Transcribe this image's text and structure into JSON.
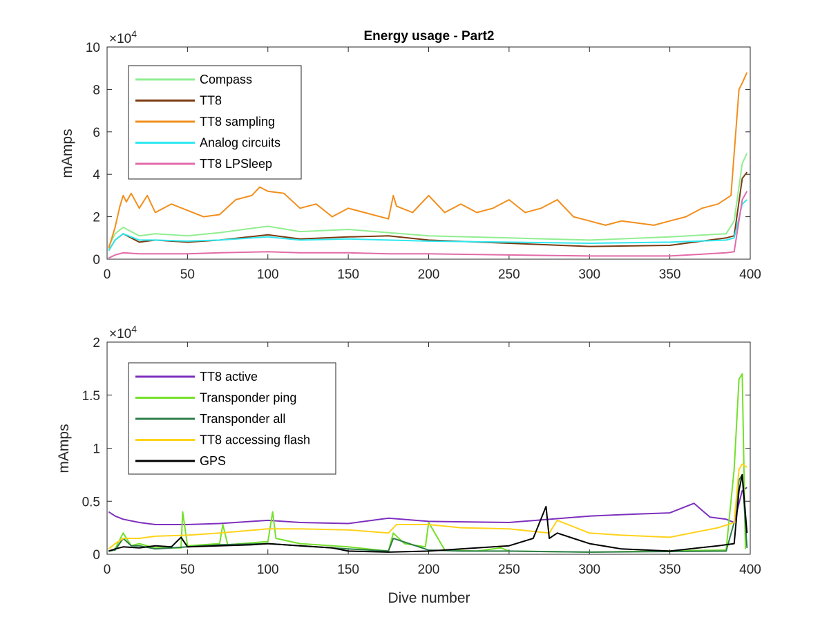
{
  "chart_data": [
    {
      "type": "line",
      "title": "Energy usage - Part2",
      "xlabel": "",
      "ylabel": "mAmps",
      "exponent_label": "×10",
      "exponent_power": "4",
      "xlim": [
        0,
        400
      ],
      "ylim": [
        0,
        100000
      ],
      "xticks": [
        0,
        50,
        100,
        150,
        200,
        250,
        300,
        350,
        400
      ],
      "xtick_labels": [
        "0",
        "50",
        "100",
        "150",
        "200",
        "250",
        "300",
        "350",
        "400"
      ],
      "yticks": [
        0,
        20000,
        40000,
        60000,
        80000,
        100000
      ],
      "ytick_labels": [
        "0",
        "2",
        "4",
        "6",
        "8",
        "10"
      ],
      "grid": false,
      "legend_position": "top-left",
      "series": [
        {
          "name": "Compass",
          "color": "#90ee90",
          "x": [
            1,
            5,
            10,
            20,
            30,
            50,
            70,
            100,
            120,
            150,
            175,
            200,
            250,
            300,
            350,
            385,
            390,
            395,
            398
          ],
          "y": [
            6000,
            12000,
            15000,
            11000,
            12000,
            11000,
            12500,
            15500,
            13000,
            14000,
            12500,
            11000,
            10000,
            9000,
            10500,
            12000,
            18000,
            45000,
            50000
          ]
        },
        {
          "name": "TT8",
          "color": "#7b3a10",
          "x": [
            1,
            5,
            10,
            20,
            30,
            50,
            70,
            100,
            120,
            150,
            175,
            200,
            250,
            300,
            350,
            385,
            390,
            395,
            398
          ],
          "y": [
            4000,
            9000,
            12000,
            8000,
            9000,
            8000,
            9000,
            11500,
            9500,
            10500,
            11000,
            9000,
            7500,
            6000,
            6500,
            10000,
            11000,
            38000,
            41000
          ]
        },
        {
          "name": "TT8 sampling",
          "color": "#f28e1c",
          "x": [
            1,
            5,
            8,
            10,
            12,
            15,
            20,
            25,
            30,
            40,
            50,
            60,
            70,
            80,
            90,
            95,
            100,
            110,
            120,
            130,
            140,
            145,
            150,
            160,
            175,
            178,
            180,
            190,
            200,
            210,
            220,
            230,
            240,
            250,
            260,
            270,
            280,
            290,
            300,
            310,
            320,
            330,
            340,
            350,
            360,
            370,
            380,
            388,
            391,
            393,
            395,
            398
          ],
          "y": [
            5000,
            15000,
            25000,
            30000,
            27000,
            31000,
            24000,
            30000,
            22000,
            26000,
            23000,
            20000,
            21000,
            28000,
            30000,
            34000,
            32000,
            31000,
            24000,
            26000,
            20000,
            22000,
            24000,
            22000,
            19000,
            30000,
            25000,
            22000,
            30000,
            22000,
            26000,
            22000,
            24000,
            28000,
            22000,
            24000,
            28000,
            20000,
            18000,
            16000,
            18000,
            17000,
            16000,
            18000,
            20000,
            24000,
            26000,
            30000,
            60000,
            80000,
            83000,
            88000
          ]
        },
        {
          "name": "Analog circuits",
          "color": "#2ee8f0",
          "x": [
            1,
            5,
            10,
            20,
            30,
            50,
            70,
            100,
            120,
            150,
            175,
            200,
            250,
            300,
            350,
            385,
            390,
            395,
            398
          ],
          "y": [
            4000,
            9000,
            12000,
            9000,
            9000,
            8500,
            9000,
            10500,
            9000,
            9500,
            9000,
            8500,
            8000,
            7500,
            8000,
            9000,
            10000,
            26000,
            28000
          ]
        },
        {
          "name": "TT8 LPSleep",
          "color": "#e26aa8",
          "x": [
            1,
            5,
            10,
            20,
            30,
            50,
            70,
            100,
            120,
            150,
            175,
            200,
            250,
            300,
            350,
            385,
            390,
            395,
            398
          ],
          "y": [
            500,
            2000,
            3000,
            2500,
            2500,
            2500,
            3000,
            3500,
            3000,
            3000,
            2500,
            2500,
            2000,
            1500,
            1500,
            3000,
            3500,
            28000,
            32000
          ]
        }
      ]
    },
    {
      "type": "line",
      "title": "",
      "xlabel": "Dive number",
      "ylabel": "mAmps",
      "exponent_label": "×10",
      "exponent_power": "4",
      "xlim": [
        0,
        400
      ],
      "ylim": [
        0,
        20000
      ],
      "xticks": [
        0,
        50,
        100,
        150,
        200,
        250,
        300,
        350,
        400
      ],
      "xtick_labels": [
        "0",
        "50",
        "100",
        "150",
        "200",
        "250",
        "300",
        "350",
        "400"
      ],
      "yticks": [
        0,
        5000,
        10000,
        15000,
        20000
      ],
      "ytick_labels": [
        "0",
        "0.5",
        "1",
        "1.5",
        "2"
      ],
      "grid": false,
      "legend_position": "top-left",
      "series": [
        {
          "name": "TT8 active",
          "color": "#7e2fbe",
          "x": [
            1,
            5,
            10,
            20,
            30,
            50,
            70,
            100,
            120,
            150,
            175,
            200,
            250,
            300,
            330,
            350,
            365,
            375,
            385,
            390,
            395,
            398
          ],
          "y": [
            4000,
            3600,
            3300,
            3000,
            2800,
            2800,
            2900,
            3200,
            3000,
            2900,
            3400,
            3100,
            3000,
            3600,
            3800,
            3900,
            4800,
            3500,
            3300,
            3000,
            6000,
            6300
          ]
        },
        {
          "name": "Transponder ping",
          "color": "#74e02a",
          "x": [
            1,
            5,
            10,
            15,
            20,
            30,
            46,
            47,
            50,
            70,
            72,
            75,
            100,
            103,
            105,
            120,
            150,
            175,
            178,
            185,
            198,
            200,
            210,
            230,
            245,
            250,
            300,
            385,
            390,
            393,
            395,
            397
          ],
          "y": [
            300,
            500,
            2000,
            800,
            1000,
            600,
            600,
            4000,
            800,
            1000,
            2800,
            900,
            1200,
            4000,
            1500,
            1000,
            700,
            300,
            2000,
            1000,
            700,
            3000,
            400,
            300,
            600,
            300,
            200,
            400,
            8000,
            16500,
            17000,
            500
          ]
        },
        {
          "name": "Transponder all",
          "color": "#2e7d4a",
          "x": [
            1,
            5,
            10,
            15,
            20,
            30,
            50,
            70,
            100,
            120,
            150,
            175,
            178,
            200,
            220,
            250,
            300,
            385,
            390,
            393,
            395,
            398
          ],
          "y": [
            300,
            400,
            1500,
            800,
            800,
            500,
            700,
            900,
            1000,
            800,
            500,
            300,
            1500,
            400,
            300,
            300,
            200,
            300,
            3000,
            7000,
            7500,
            600
          ]
        },
        {
          "name": "TT8 accessing flash",
          "color": "#ffd21a",
          "x": [
            1,
            5,
            10,
            20,
            30,
            50,
            70,
            100,
            120,
            150,
            175,
            180,
            200,
            220,
            250,
            275,
            280,
            300,
            320,
            350,
            380,
            390,
            393,
            395,
            398
          ],
          "y": [
            500,
            1000,
            1500,
            1500,
            1700,
            1800,
            2000,
            2400,
            2400,
            2300,
            2000,
            2800,
            2800,
            2500,
            2400,
            2000,
            3200,
            2000,
            1800,
            1600,
            2500,
            3000,
            8000,
            8500,
            8200
          ]
        },
        {
          "name": "GPS",
          "color": "#000000",
          "x": [
            1,
            5,
            10,
            20,
            30,
            40,
            46,
            50,
            70,
            90,
            100,
            120,
            140,
            150,
            175,
            200,
            220,
            250,
            265,
            273,
            275,
            280,
            290,
            300,
            320,
            350,
            380,
            390,
            393,
            395,
            398
          ],
          "y": [
            300,
            500,
            700,
            600,
            800,
            700,
            1600,
            700,
            800,
            900,
            1000,
            800,
            600,
            300,
            200,
            300,
            500,
            800,
            1500,
            4500,
            1500,
            2000,
            1500,
            1000,
            500,
            300,
            800,
            1000,
            6000,
            7500,
            2000
          ]
        }
      ]
    }
  ]
}
